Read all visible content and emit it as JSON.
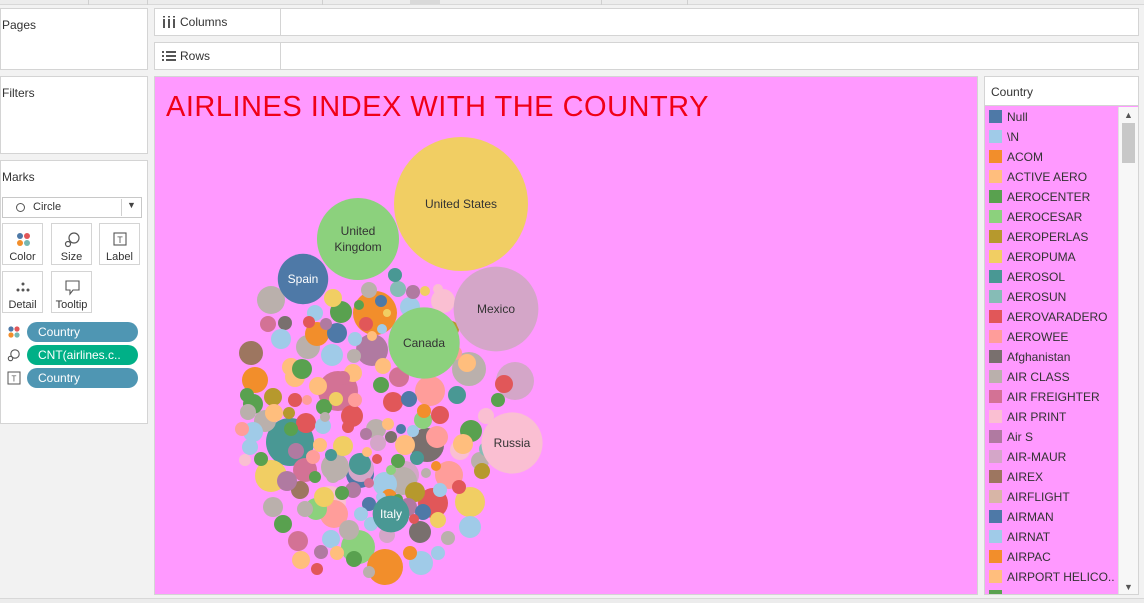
{
  "left_panel": {
    "pages_title": "Pages",
    "filters_title": "Filters",
    "marks_title": "Marks",
    "mark_type": "Circle",
    "cards": [
      {
        "label": "Color",
        "icon": "color-dots-icon"
      },
      {
        "label": "Size",
        "icon": "size-icon"
      },
      {
        "label": "Label",
        "icon": "label-icon"
      },
      {
        "label": "Detail",
        "icon": "detail-icon"
      },
      {
        "label": "Tooltip",
        "icon": "tooltip-icon"
      }
    ],
    "pills": [
      {
        "label": "Country",
        "icon": "color-dots-icon",
        "color": "#4f96b3"
      },
      {
        "label": "CNT(airlines.c..",
        "icon": "size-icon",
        "color": "#00b087"
      },
      {
        "label": "Country",
        "icon": "label-icon",
        "color": "#4f96b3"
      }
    ]
  },
  "shelves": {
    "columns_label": "Columns",
    "rows_label": "Rows"
  },
  "viz": {
    "title": "AIRLINES INDEX WITH THE COUNTRY",
    "background": "#ff99ff",
    "title_color": "#f00018"
  },
  "chart_data": {
    "type": "packed-bubble",
    "title": "AIRLINES INDEX WITH THE COUNTRY",
    "size_measure": "CNT(airlines.c..",
    "color_dimension": "Country",
    "labeled_bubbles": [
      {
        "label": "United States",
        "size": 1200
      },
      {
        "label": "Mexico",
        "size": 480
      },
      {
        "label": "United Kingdom",
        "size": 450
      },
      {
        "label": "Canada",
        "size": 340
      },
      {
        "label": "Russia",
        "size": 250
      },
      {
        "label": "Spain",
        "size": 170
      },
      {
        "label": "Italy",
        "size": 90
      }
    ]
  },
  "legend": {
    "title": "Country",
    "items": [
      {
        "label": "Null",
        "color": "#4e79a7"
      },
      {
        "label": "\\N",
        "color": "#a0cbe8"
      },
      {
        "label": "ACOM",
        "color": "#f28e2b"
      },
      {
        "label": "ACTIVE AERO",
        "color": "#ffbe7d"
      },
      {
        "label": "AEROCENTER",
        "color": "#59a14f"
      },
      {
        "label": "AEROCESAR",
        "color": "#8cd17d"
      },
      {
        "label": "AEROPERLAS",
        "color": "#b6992d"
      },
      {
        "label": "AEROPUMA",
        "color": "#f1ce63"
      },
      {
        "label": "AEROSOL",
        "color": "#499894"
      },
      {
        "label": "AEROSUN",
        "color": "#86bcb6"
      },
      {
        "label": "AEROVARADERO",
        "color": "#e15759"
      },
      {
        "label": "AEROWEE",
        "color": "#ff9d9a"
      },
      {
        "label": "Afghanistan",
        "color": "#79706e"
      },
      {
        "label": "AIR CLASS",
        "color": "#bab0ac"
      },
      {
        "label": "AIR FREIGHTER",
        "color": "#d37295"
      },
      {
        "label": "AIR PRINT",
        "color": "#fabfd2"
      },
      {
        "label": "Air S",
        "color": "#b07aa1"
      },
      {
        "label": "AIR-MAUR",
        "color": "#d4a6c8"
      },
      {
        "label": "AIREX",
        "color": "#9d7660"
      },
      {
        "label": "AIRFLIGHT",
        "color": "#d7b5a6"
      },
      {
        "label": "AIRMAN",
        "color": "#4e79a7"
      },
      {
        "label": "AIRNAT",
        "color": "#a0cbe8"
      },
      {
        "label": "AIRPAC",
        "color": "#f28e2b"
      },
      {
        "label": "AIRPORT HELICO..",
        "color": "#ffbe7d"
      },
      {
        "label": "",
        "color": "#59a14f"
      }
    ]
  }
}
